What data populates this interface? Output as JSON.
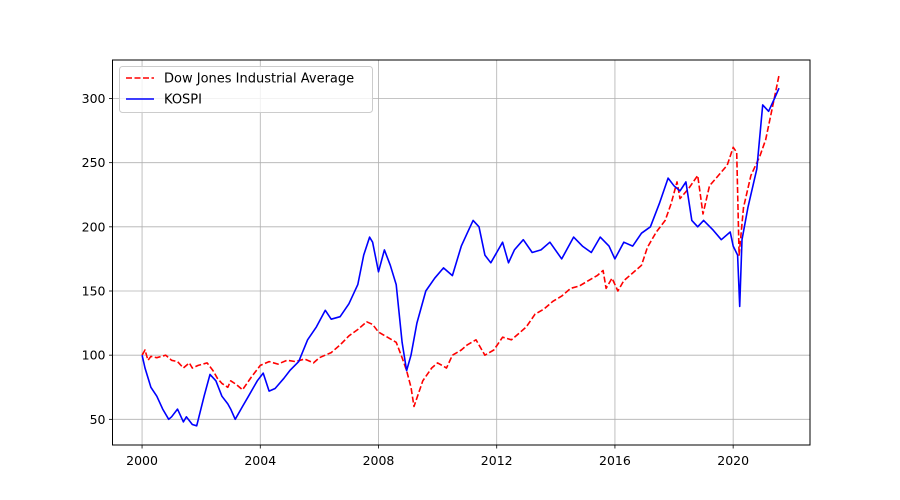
{
  "chart_data": {
    "type": "line",
    "title": "",
    "xlabel": "",
    "ylabel": "",
    "xlim": [
      1999.0,
      2022.6
    ],
    "ylim": [
      30,
      330
    ],
    "grid": true,
    "legend_position": "top-left",
    "x_ticks": [
      2000,
      2004,
      2008,
      2012,
      2016,
      2020
    ],
    "x_tick_labels": [
      "2000",
      "2004",
      "2008",
      "2012",
      "2016",
      "2020"
    ],
    "y_ticks": [
      50,
      100,
      150,
      200,
      250,
      300
    ],
    "y_tick_labels": [
      "50",
      "100",
      "150",
      "200",
      "250",
      "300"
    ],
    "series": [
      {
        "name": "Dow Jones Industrial Average",
        "color": "#ff0000",
        "style": "dashed",
        "x": [
          2000.0,
          2000.1,
          2000.2,
          2000.3,
          2000.5,
          2000.8,
          2001.0,
          2001.2,
          2001.4,
          2001.6,
          2001.7,
          2001.9,
          2002.2,
          2002.4,
          2002.55,
          2002.7,
          2002.9,
          2003.0,
          2003.2,
          2003.4,
          2003.7,
          2004.0,
          2004.3,
          2004.6,
          2004.9,
          2005.2,
          2005.5,
          2005.8,
          2006.0,
          2006.4,
          2006.7,
          2007.0,
          2007.3,
          2007.6,
          2007.8,
          2008.0,
          2008.3,
          2008.6,
          2008.8,
          2008.95,
          2009.1,
          2009.2,
          2009.5,
          2009.8,
          2010.0,
          2010.3,
          2010.5,
          2010.8,
          2011.0,
          2011.3,
          2011.6,
          2011.9,
          2012.2,
          2012.5,
          2012.8,
          2013.0,
          2013.3,
          2013.6,
          2013.9,
          2014.2,
          2014.5,
          2014.8,
          2015.1,
          2015.4,
          2015.6,
          2015.7,
          2015.9,
          2016.1,
          2016.3,
          2016.6,
          2016.9,
          2017.1,
          2017.4,
          2017.7,
          2017.9,
          2018.1,
          2018.2,
          2018.5,
          2018.8,
          2018.98,
          2019.2,
          2019.5,
          2019.8,
          2020.0,
          2020.12,
          2020.2,
          2020.35,
          2020.6,
          2020.9,
          2021.1,
          2021.3,
          2021.55
        ],
        "values": [
          100,
          104,
          96,
          99,
          98,
          100,
          96,
          95,
          90,
          94,
          90,
          92,
          94,
          88,
          82,
          78,
          75,
          80,
          77,
          73,
          83,
          92,
          95,
          93,
          96,
          95,
          97,
          94,
          98,
          102,
          108,
          115,
          120,
          126,
          124,
          118,
          114,
          110,
          98,
          88,
          75,
          60,
          80,
          90,
          94,
          90,
          100,
          104,
          108,
          112,
          100,
          104,
          114,
          112,
          118,
          122,
          132,
          136,
          142,
          146,
          152,
          154,
          158,
          162,
          166,
          152,
          160,
          150,
          158,
          164,
          170,
          184,
          196,
          205,
          218,
          235,
          222,
          230,
          240,
          210,
          232,
          240,
          248,
          262,
          258,
          178,
          215,
          240,
          255,
          268,
          290,
          318
        ]
      },
      {
        "name": "KOSPI",
        "color": "#0000ff",
        "style": "solid",
        "x": [
          2000.0,
          2000.1,
          2000.3,
          2000.5,
          2000.7,
          2000.9,
          2001.0,
          2001.2,
          2001.4,
          2001.5,
          2001.7,
          2001.85,
          2002.1,
          2002.3,
          2002.5,
          2002.7,
          2002.9,
          2003.0,
          2003.15,
          2003.4,
          2003.6,
          2003.9,
          2004.1,
          2004.3,
          2004.5,
          2004.8,
          2005.0,
          2005.3,
          2005.6,
          2005.9,
          2006.2,
          2006.4,
          2006.7,
          2007.0,
          2007.3,
          2007.5,
          2007.7,
          2007.8,
          2008.0,
          2008.2,
          2008.4,
          2008.6,
          2008.8,
          2008.95,
          2009.1,
          2009.3,
          2009.6,
          2009.9,
          2010.2,
          2010.5,
          2010.8,
          2011.0,
          2011.2,
          2011.4,
          2011.6,
          2011.8,
          2012.0,
          2012.2,
          2012.4,
          2012.6,
          2012.9,
          2013.2,
          2013.5,
          2013.8,
          2014.2,
          2014.6,
          2014.9,
          2015.2,
          2015.5,
          2015.8,
          2016.0,
          2016.3,
          2016.6,
          2016.9,
          2017.2,
          2017.5,
          2017.8,
          2018.0,
          2018.2,
          2018.4,
          2018.6,
          2018.8,
          2019.0,
          2019.3,
          2019.6,
          2019.9,
          2020.0,
          2020.15,
          2020.22,
          2020.3,
          2020.5,
          2020.8,
          2021.0,
          2021.2,
          2021.4,
          2021.55
        ],
        "values": [
          100,
          90,
          75,
          68,
          58,
          50,
          52,
          58,
          48,
          52,
          46,
          45,
          68,
          85,
          80,
          68,
          62,
          58,
          50,
          60,
          68,
          80,
          86,
          72,
          74,
          82,
          88,
          95,
          112,
          122,
          135,
          128,
          130,
          140,
          155,
          178,
          192,
          188,
          165,
          182,
          170,
          155,
          110,
          88,
          100,
          125,
          150,
          160,
          168,
          162,
          185,
          195,
          205,
          200,
          178,
          172,
          180,
          188,
          172,
          182,
          190,
          180,
          182,
          188,
          175,
          192,
          185,
          180,
          192,
          185,
          175,
          188,
          185,
          195,
          200,
          218,
          238,
          232,
          228,
          235,
          205,
          200,
          205,
          198,
          190,
          196,
          185,
          178,
          138,
          190,
          215,
          245,
          295,
          290,
          300,
          308
        ]
      }
    ]
  }
}
